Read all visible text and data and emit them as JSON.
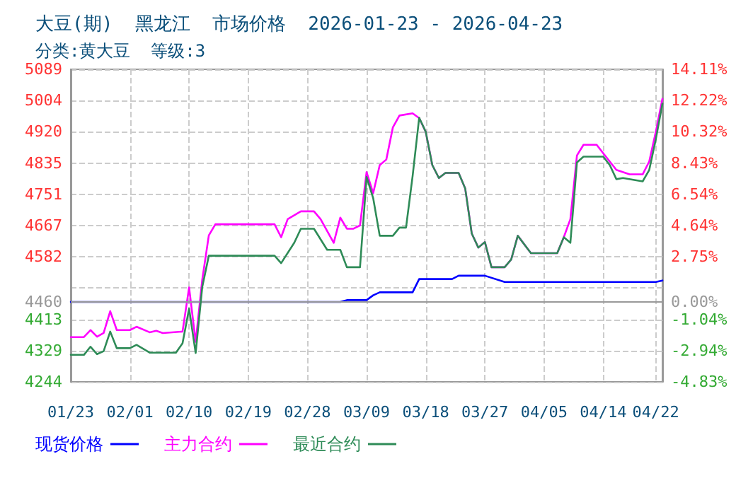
{
  "chart_data": {
    "type": "line",
    "title": "大豆(期)  黑龙江  市场价格  2026-01-23 - 2026-04-23",
    "subtitle": "分类:黄大豆  等级:3",
    "xlim": [
      "2026-01-23",
      "2026-04-23"
    ],
    "xticks": [
      {
        "value": "2026-01-23",
        "label": "01/23"
      },
      {
        "value": "2026-02-01",
        "label": "02/01"
      },
      {
        "value": "2026-02-10",
        "label": "02/10"
      },
      {
        "value": "2026-02-19",
        "label": "02/19"
      },
      {
        "value": "2026-02-28",
        "label": "02/28"
      },
      {
        "value": "2026-03-09",
        "label": "03/09"
      },
      {
        "value": "2026-03-18",
        "label": "03/18"
      },
      {
        "value": "2026-03-27",
        "label": "03/27"
      },
      {
        "value": "2026-04-05",
        "label": "04/05"
      },
      {
        "value": "2026-04-14",
        "label": "04/14"
      },
      {
        "value": "2026-04-22",
        "label": "04/22"
      }
    ],
    "ylim": [
      4244,
      5089
    ],
    "yticks": [
      5089,
      5004,
      4920,
      4835,
      4751,
      4667,
      4582,
      {
        "value": 4498,
        "label": null
      },
      4460,
      4413,
      4329,
      4244
    ],
    "y2lim": [
      -4.83,
      14.11
    ],
    "y2ticks": [
      {
        "value": 14.11,
        "label": "14.11%"
      },
      {
        "value": 12.22,
        "label": "12.22%"
      },
      {
        "value": 10.32,
        "label": "10.32%"
      },
      {
        "value": 8.43,
        "label": "8.43%"
      },
      {
        "value": 6.54,
        "label": "6.54%"
      },
      {
        "value": 4.64,
        "label": "4.64%"
      },
      {
        "value": 2.75,
        "label": "2.75%"
      },
      {
        "value": 0,
        "label": "0.00%"
      },
      {
        "value": -1.04,
        "label": "-1.04%"
      },
      {
        "value": -2.94,
        "label": "-2.94%"
      },
      {
        "value": -4.83,
        "label": "-4.83%"
      }
    ],
    "ref_lines": [
      {
        "axis": "y",
        "value": 4460,
        "color": "#999999"
      }
    ],
    "grid": true,
    "legend": "bottom",
    "marker": "none",
    "line_style": "solid",
    "series": [
      {
        "name": "现货价格",
        "color": "#0000ff",
        "x": [
          "2026-01-23",
          "2026-03-05",
          "2026-03-06",
          "2026-03-09",
          "2026-03-10",
          "2026-03-11",
          "2026-03-16",
          "2026-03-17",
          "2026-03-22",
          "2026-03-23",
          "2026-03-27",
          "2026-03-30",
          "2026-04-22",
          "2026-04-23"
        ],
        "values": [
          4460,
          4460,
          4465,
          4465,
          4478,
          4486,
          4486,
          4522,
          4522,
          4531,
          4531,
          4514,
          4514,
          4518
        ]
      },
      {
        "name": "主力合约",
        "color": "#ff00ff",
        "x": [
          "2026-01-23",
          "2026-01-25",
          "2026-01-26",
          "2026-01-27",
          "2026-01-28",
          "2026-01-29",
          "2026-01-30",
          "2026-02-01",
          "2026-02-02",
          "2026-02-04",
          "2026-02-05",
          "2026-02-06",
          "2026-02-09",
          "2026-02-10",
          "2026-02-11",
          "2026-02-12",
          "2026-02-13",
          "2026-02-14",
          "2026-02-23",
          "2026-02-24",
          "2026-02-25",
          "2026-02-27",
          "2026-03-01",
          "2026-03-02",
          "2026-03-04",
          "2026-03-05",
          "2026-03-06",
          "2026-03-07",
          "2026-03-08",
          "2026-03-09",
          "2026-03-10",
          "2026-03-11",
          "2026-03-12",
          "2026-03-13",
          "2026-03-14",
          "2026-03-16",
          "2026-03-17",
          "2026-03-18",
          "2026-03-19",
          "2026-03-20",
          "2026-03-21",
          "2026-03-23",
          "2026-03-24",
          "2026-03-25",
          "2026-03-26",
          "2026-03-27",
          "2026-03-28",
          "2026-03-30",
          "2026-03-31",
          "2026-04-01",
          "2026-04-03",
          "2026-04-07",
          "2026-04-08",
          "2026-04-09",
          "2026-04-10",
          "2026-04-11",
          "2026-04-13",
          "2026-04-14",
          "2026-04-16",
          "2026-04-18",
          "2026-04-20",
          "2026-04-21",
          "2026-04-22",
          "2026-04-23"
        ],
        "values": [
          4365,
          4365,
          4384,
          4366,
          4376,
          4435,
          4384,
          4384,
          4393,
          4378,
          4382,
          4376,
          4380,
          4499,
          4352,
          4520,
          4640,
          4670,
          4670,
          4635,
          4684,
          4705,
          4705,
          4684,
          4620,
          4688,
          4658,
          4658,
          4667,
          4811,
          4754,
          4830,
          4845,
          4932,
          4964,
          4970,
          4957,
          4920,
          4830,
          4795,
          4809,
          4809,
          4767,
          4645,
          4607,
          4622,
          4554,
          4554,
          4575,
          4639,
          4592,
          4592,
          4635,
          4684,
          4856,
          4885,
          4885,
          4862,
          4817,
          4805,
          4805,
          4840,
          4920,
          5009
        ]
      },
      {
        "name": "最近合约",
        "color": "#2e8b57",
        "x": [
          "2026-01-23",
          "2026-01-25",
          "2026-01-26",
          "2026-01-27",
          "2026-01-28",
          "2026-01-29",
          "2026-01-30",
          "2026-02-01",
          "2026-02-02",
          "2026-02-04",
          "2026-02-08",
          "2026-02-09",
          "2026-02-10",
          "2026-02-11",
          "2026-02-12",
          "2026-02-13",
          "2026-02-23",
          "2026-02-24",
          "2026-02-26",
          "2026-02-27",
          "2026-03-01",
          "2026-03-03",
          "2026-03-05",
          "2026-03-06",
          "2026-03-08",
          "2026-03-09",
          "2026-03-10",
          "2026-03-11",
          "2026-03-13",
          "2026-03-14",
          "2026-03-15",
          "2026-03-16",
          "2026-03-17",
          "2026-03-18",
          "2026-03-19",
          "2026-03-20",
          "2026-03-21",
          "2026-03-23",
          "2026-03-24",
          "2026-03-25",
          "2026-03-26",
          "2026-03-27",
          "2026-03-28",
          "2026-03-30",
          "2026-03-31",
          "2026-04-01",
          "2026-04-03",
          "2026-04-07",
          "2026-04-08",
          "2026-04-09",
          "2026-04-10",
          "2026-04-11",
          "2026-04-14",
          "2026-04-15",
          "2026-04-16",
          "2026-04-17",
          "2026-04-20",
          "2026-04-21",
          "2026-04-22",
          "2026-04-23"
        ],
        "values": [
          4317,
          4317,
          4339,
          4319,
          4327,
          4380,
          4335,
          4335,
          4344,
          4323,
          4323,
          4348,
          4442,
          4322,
          4500,
          4585,
          4585,
          4565,
          4620,
          4658,
          4658,
          4601,
          4601,
          4554,
          4554,
          4798,
          4741,
          4639,
          4639,
          4661,
          4661,
          4800,
          4958,
          4920,
          4830,
          4795,
          4809,
          4809,
          4767,
          4645,
          4607,
          4622,
          4554,
          4554,
          4575,
          4639,
          4592,
          4592,
          4635,
          4620,
          4837,
          4853,
          4853,
          4830,
          4792,
          4795,
          4786,
          4817,
          4900,
          4996
        ]
      }
    ]
  }
}
